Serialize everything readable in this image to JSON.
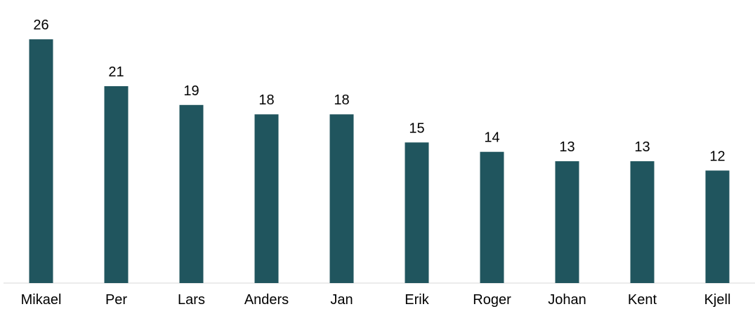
{
  "chart_data": {
    "type": "bar",
    "title": "",
    "xlabel": "",
    "ylabel": "",
    "categories": [
      "Mikael",
      "Per",
      "Lars",
      "Anders",
      "Jan",
      "Erik",
      "Roger",
      "Johan",
      "Kent",
      "Kjell"
    ],
    "values": [
      26,
      21,
      19,
      18,
      18,
      15,
      14,
      13,
      13,
      12
    ],
    "ylim": [
      0,
      28
    ],
    "grid": false,
    "legend": "none",
    "data_labels": true,
    "bar_color": "#20555E"
  }
}
